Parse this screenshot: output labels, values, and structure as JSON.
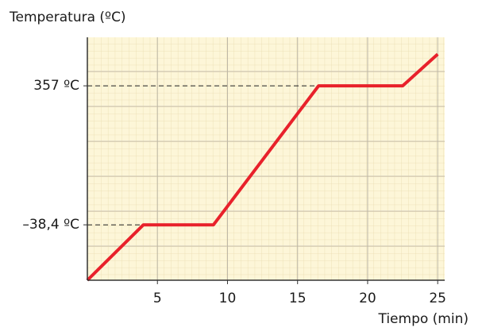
{
  "chart_data": {
    "type": "line",
    "y_axis_label": "Temperatura (ºC)",
    "x_axis_label": "Tiempo (min)",
    "x": [
      0,
      4,
      9,
      16.5,
      22.5,
      25
    ],
    "values": [
      -196,
      -38.4,
      -38.4,
      357,
      357,
      447
    ],
    "color": "#e8212b",
    "xlim": [
      0,
      25.5
    ],
    "ylim": [
      -196,
      495
    ],
    "xticks": [
      5,
      10,
      15,
      20,
      25
    ],
    "yticks": [
      {
        "value": -38.4,
        "label": "–38,4 ºC"
      },
      {
        "value": 357,
        "label": "357 ºC"
      }
    ],
    "grid": true
  }
}
